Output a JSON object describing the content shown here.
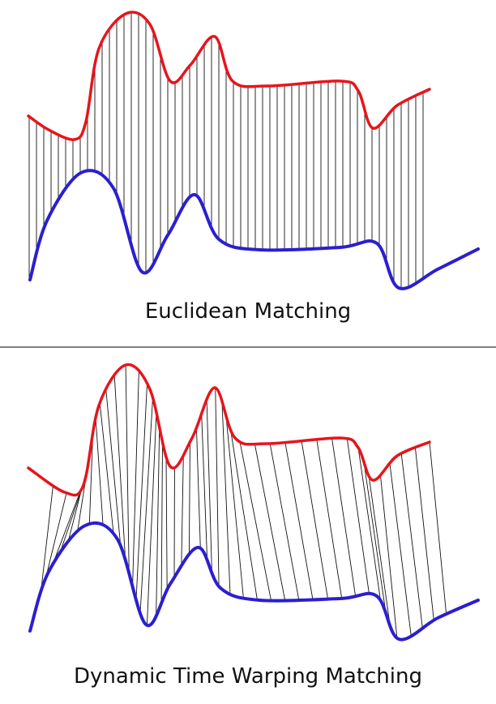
{
  "panels": [
    {
      "caption": "Euclidean Matching"
    },
    {
      "caption": "Dynamic Time Warping Matching"
    }
  ]
}
